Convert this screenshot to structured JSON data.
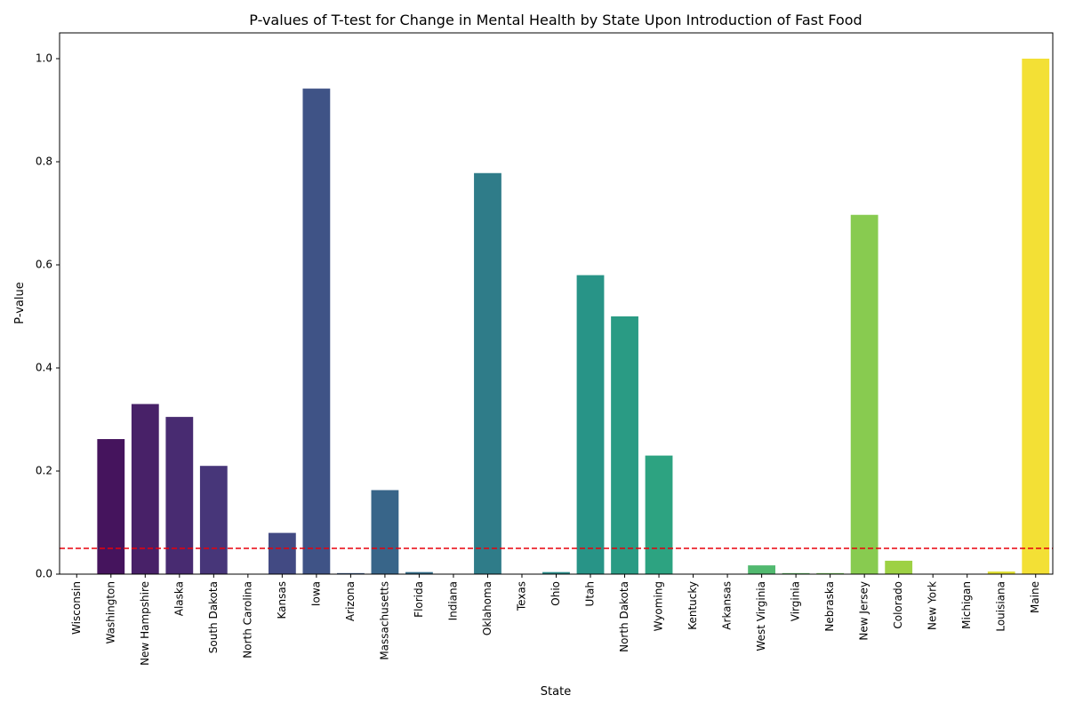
{
  "chart_data": {
    "type": "bar",
    "title": "P-values of T-test for Change in Mental Health by State Upon Introduction of Fast Food",
    "xlabel": "State",
    "ylabel": "P-value",
    "ylim": [
      0,
      1.05
    ],
    "yticks": [
      "0.0",
      "0.2",
      "0.4",
      "0.6",
      "0.8",
      "1.0"
    ],
    "ytick_values": [
      0,
      0.2,
      0.4,
      0.6,
      0.8,
      1.0
    ],
    "grid": false,
    "legend": "none",
    "colormap": "viridis",
    "threshold": {
      "value": 0.05,
      "color": "#e8000b",
      "style": "dashed"
    },
    "categories": [
      "Wisconsin",
      "Washington",
      "New Hampshire",
      "Alaska",
      "South Dakota",
      "North Carolina",
      "Kansas",
      "Iowa",
      "Arizona",
      "Massachusetts",
      "Florida",
      "Indiana",
      "Oklahoma",
      "Texas",
      "Ohio",
      "Utah",
      "North Dakota",
      "Wyoming",
      "Kentucky",
      "Arkansas",
      "West Virginia",
      "Virginia",
      "Nebraska",
      "New Jersey",
      "Colorado",
      "New York",
      "Michigan",
      "Louisiana",
      "Maine"
    ],
    "values": [
      0.0,
      0.262,
      0.33,
      0.305,
      0.21,
      0.0,
      0.08,
      0.942,
      0.002,
      0.163,
      0.004,
      0.0,
      0.778,
      0.0,
      0.004,
      0.58,
      0.5,
      0.23,
      0.0,
      0.0,
      0.017,
      0.002,
      0.002,
      0.697,
      0.026,
      0.0,
      0.0,
      0.005,
      1.0
    ],
    "colors": [
      "#440154",
      "#481a6c",
      "#472f7d",
      "#414487",
      "#39568c",
      "#31688e",
      "#2a788e",
      "#23888e",
      "#1f988b",
      "#22a884",
      "#35b779",
      "#54c568",
      "#7ad151",
      "#a5db36",
      "#d2e21b",
      "#fde725"
    ]
  }
}
